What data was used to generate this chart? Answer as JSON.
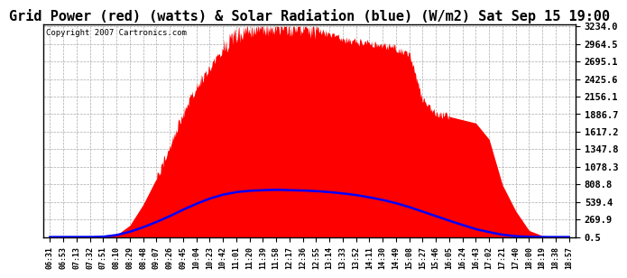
{
  "title": "Grid Power (red) (watts) & Solar Radiation (blue) (W/m2) Sat Sep 15 19:00",
  "title_fontsize": 11,
  "copyright": "Copyright 2007 Cartronics.com",
  "background_color": "#ffffff",
  "plot_bg_color": "#ffffff",
  "grid_color": "#aaaaaa",
  "red_fill_color": "#ff0000",
  "blue_line_color": "#0000ff",
  "y_ticks": [
    0.5,
    269.9,
    539.4,
    808.8,
    1078.3,
    1347.8,
    1617.2,
    1886.7,
    2156.1,
    2425.6,
    2695.1,
    2964.5,
    3234.0
  ],
  "x_tick_labels": [
    "06:31",
    "06:53",
    "07:13",
    "07:32",
    "07:51",
    "08:10",
    "08:29",
    "08:48",
    "09:07",
    "09:26",
    "09:45",
    "10:04",
    "10:23",
    "10:42",
    "11:01",
    "11:20",
    "11:39",
    "11:58",
    "12:17",
    "12:36",
    "12:55",
    "13:14",
    "13:33",
    "13:52",
    "14:11",
    "14:30",
    "14:49",
    "15:08",
    "15:27",
    "15:46",
    "16:05",
    "16:24",
    "16:43",
    "17:02",
    "17:21",
    "17:40",
    "18:00",
    "18:19",
    "18:38",
    "18:57"
  ],
  "ylim_min": 0.5,
  "ylim_max": 3234.0,
  "red_data": [
    0,
    0,
    0,
    0,
    0,
    30,
    180,
    500,
    900,
    1400,
    1900,
    2300,
    2600,
    2900,
    3100,
    3200,
    3234,
    3220,
    3234,
    3210,
    3180,
    3100,
    3050,
    3000,
    2980,
    2950,
    2900,
    2800,
    2100,
    1900,
    1850,
    1800,
    1750,
    1500,
    800,
    400,
    100,
    20,
    0,
    0
  ],
  "blue_data": [
    0,
    0,
    0,
    0,
    5,
    30,
    80,
    150,
    230,
    320,
    420,
    510,
    590,
    650,
    690,
    710,
    720,
    725,
    720,
    715,
    705,
    690,
    670,
    645,
    610,
    570,
    520,
    460,
    390,
    320,
    250,
    185,
    120,
    75,
    35,
    12,
    3,
    0,
    0,
    0
  ]
}
